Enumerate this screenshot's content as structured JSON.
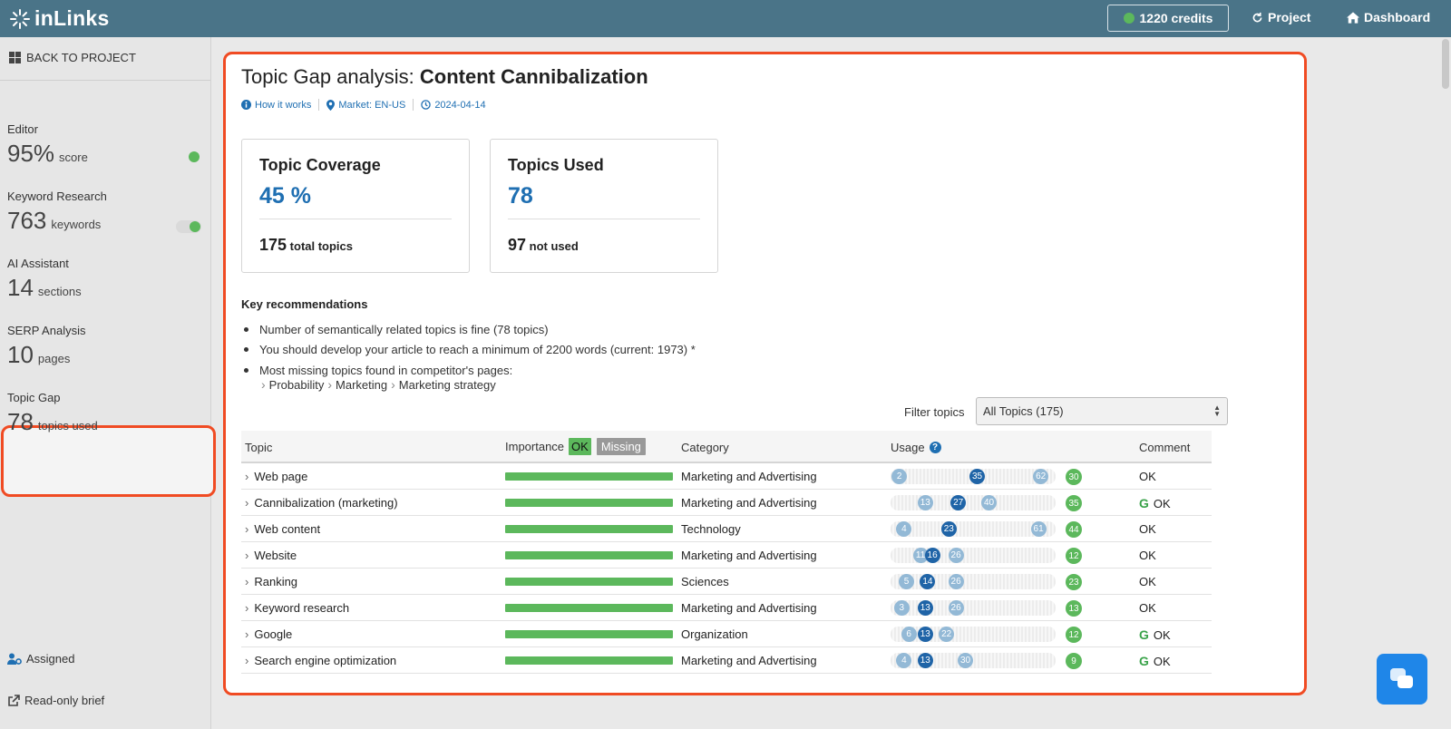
{
  "app": {
    "brand": "inLinks"
  },
  "topbar": {
    "credits": "1220 credits",
    "project": "Project",
    "dashboard": "Dashboard"
  },
  "sidebar": {
    "back": "BACK TO PROJECT",
    "items": [
      {
        "label": "Editor",
        "value": "95%",
        "unit": "score",
        "indicator": "dot"
      },
      {
        "label": "Keyword Research",
        "value": "763",
        "unit": "keywords",
        "indicator": "toggle"
      },
      {
        "label": "AI Assistant",
        "value": "14",
        "unit": "sections"
      },
      {
        "label": "SERP Analysis",
        "value": "10",
        "unit": "pages"
      },
      {
        "label": "Topic Gap",
        "value": "78",
        "unit": "topics used",
        "active": true
      }
    ],
    "assigned": "Assigned",
    "readonly": "Read-only brief"
  },
  "header": {
    "title_prefix": "Topic Gap analysis: ",
    "title_main": "Content Cannibalization",
    "how": "How it works",
    "market": "Market: EN-US",
    "date": "2024-04-14"
  },
  "cards": {
    "coverage": {
      "title": "Topic Coverage",
      "value": "45 %",
      "foot_num": "175",
      "foot_txt": "total topics"
    },
    "used": {
      "title": "Topics Used",
      "value": "78",
      "foot_num": "97",
      "foot_txt": "not used"
    }
  },
  "recommendations": {
    "title": "Key recommendations",
    "items": [
      "Number of semantically related topics is fine (78 topics)",
      "You should develop your article to reach a minimum of 2200 words (current: 1973) *",
      "Most missing topics found in competitor's pages:"
    ],
    "crumbs": [
      "Probability",
      "Marketing",
      "Marketing strategy"
    ]
  },
  "filter": {
    "label": "Filter topics",
    "selected": "All Topics (175)"
  },
  "table": {
    "headers": {
      "topic": "Topic",
      "importance": "Importance",
      "ok": "OK",
      "missing": "Missing",
      "category": "Category",
      "usage": "Usage",
      "comment": "Comment"
    },
    "rows": [
      {
        "topic": "Web page",
        "category": "Marketing and Advertising",
        "u1": "2",
        "u2": "35",
        "u3": "62",
        "count": "30",
        "comment": "OK",
        "google": false
      },
      {
        "topic": "Cannibalization (marketing)",
        "category": "Marketing and Advertising",
        "u1": "13",
        "u2": "27",
        "u3": "40",
        "count": "35",
        "comment": "OK",
        "google": true
      },
      {
        "topic": "Web content",
        "category": "Technology",
        "u1": "4",
        "u2": "23",
        "u3": "61",
        "count": "44",
        "comment": "OK",
        "google": false
      },
      {
        "topic": "Website",
        "category": "Marketing and Advertising",
        "u1": "11",
        "u2": "16",
        "u3": "26",
        "count": "12",
        "comment": "OK",
        "google": false
      },
      {
        "topic": "Ranking",
        "category": "Sciences",
        "u1": "5",
        "u2": "14",
        "u3": "26",
        "count": "23",
        "comment": "OK",
        "google": false
      },
      {
        "topic": "Keyword research",
        "category": "Marketing and Advertising",
        "u1": "3",
        "u2": "13",
        "u3": "26",
        "count": "13",
        "comment": "OK",
        "google": false
      },
      {
        "topic": "Google",
        "category": "Organization",
        "u1": "6",
        "u2": "13",
        "u3": "22",
        "count": "12",
        "comment": "OK",
        "google": true
      },
      {
        "topic": "Search engine optimization",
        "category": "Marketing and Advertising",
        "u1": "4",
        "u2": "13",
        "u3": "30",
        "count": "9",
        "comment": "OK",
        "google": true
      }
    ]
  },
  "colors": {
    "accent": "#1f6fb2",
    "success": "#5cb85c",
    "topbar": "#4a7488",
    "highlight": "#f04b23"
  }
}
